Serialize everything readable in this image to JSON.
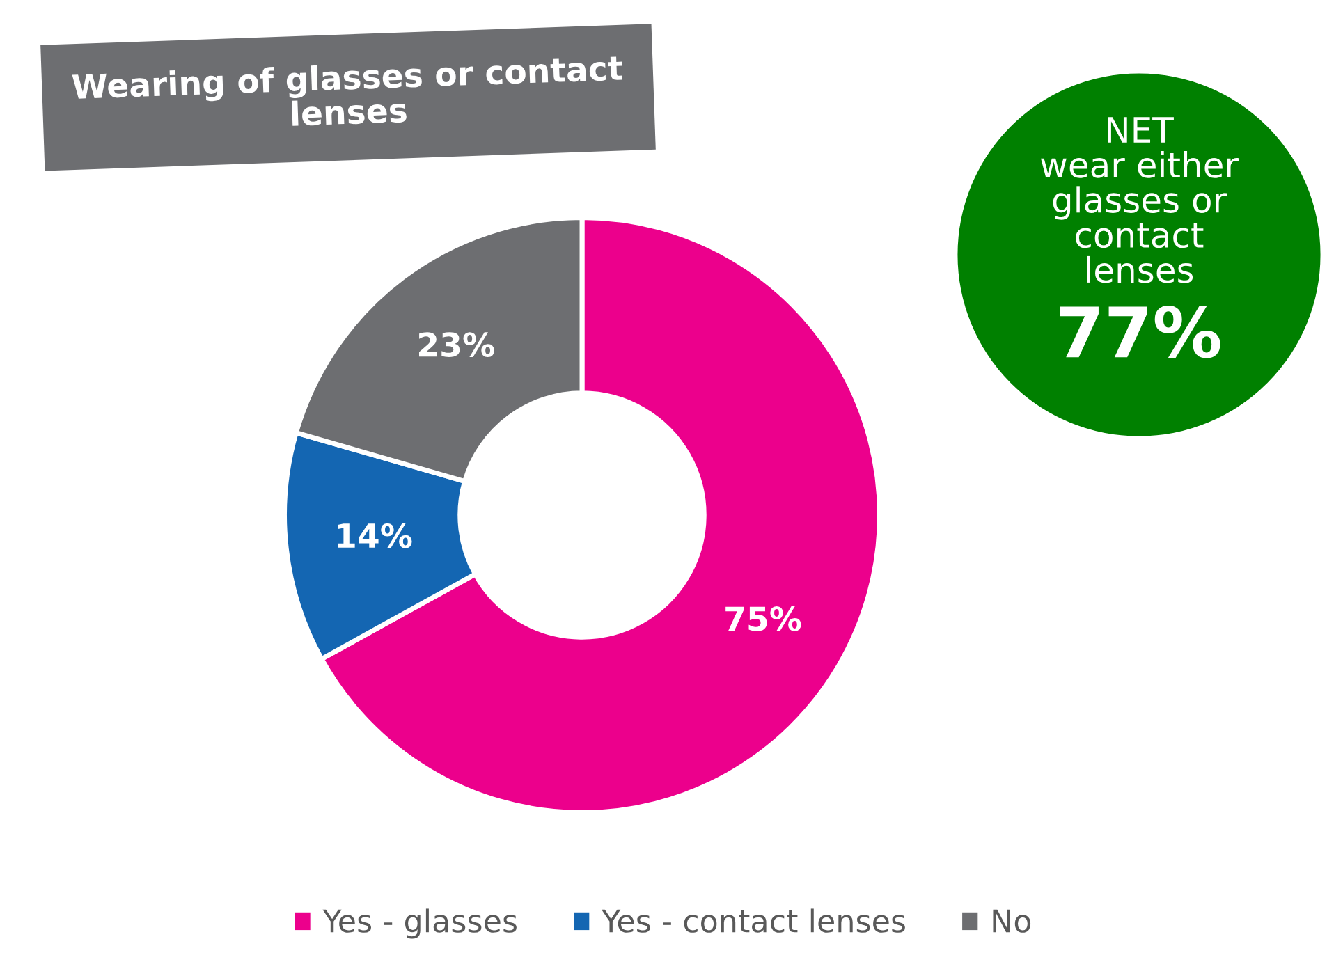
{
  "chart_data": {
    "type": "donut",
    "title": "Wearing of glasses or contact\nlenses",
    "categories": [
      "Yes - glasses",
      "Yes - contact lenses",
      "No"
    ],
    "values": [
      75,
      14,
      23
    ],
    "colors": [
      "#ec008c",
      "#1466b2",
      "#6d6e71"
    ],
    "value_labels": [
      "75%",
      "14%",
      "23%"
    ],
    "annotations": [
      "NET\nwear either\nglasses or\ncontact\nlenses",
      "77%"
    ],
    "legend": "bottom"
  }
}
